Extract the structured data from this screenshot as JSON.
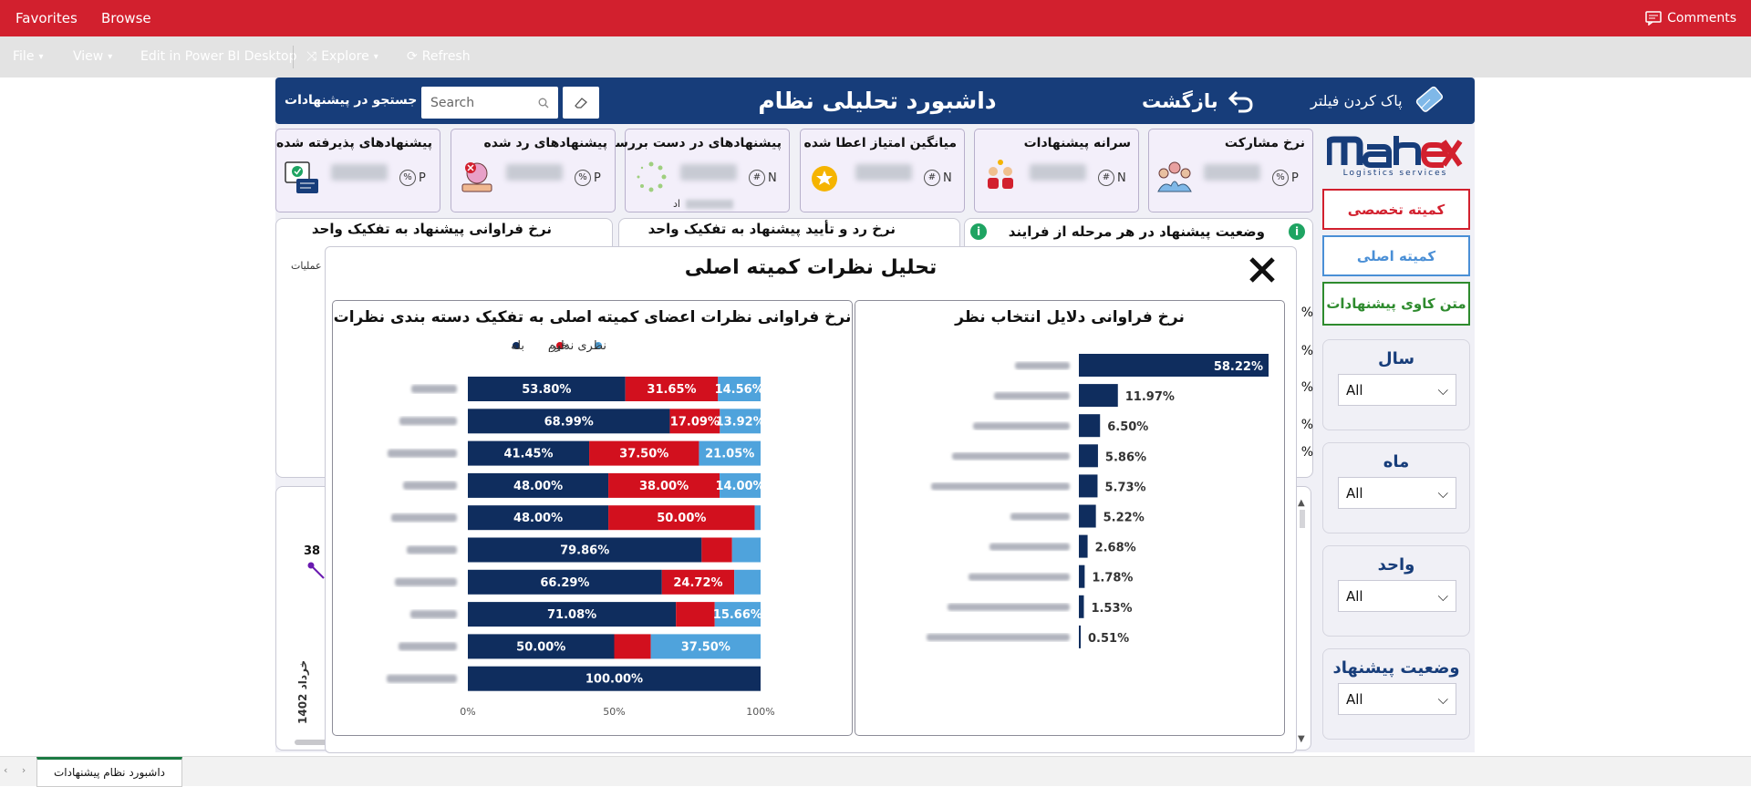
{
  "topbar": {
    "favorites": "Favorites",
    "browse": "Browse",
    "comments": "Comments"
  },
  "cmdbar": {
    "file": "File",
    "view": "View",
    "edit": "Edit in Power BI Desktop",
    "explore": "Explore",
    "refresh": "Refresh"
  },
  "header": {
    "title": "داشبورد تحلیلی نظام پیشنهادات",
    "back": "بازگشت",
    "clear_filter": "پاک کردن فیلتر",
    "search_label": "جستجو در پیشنهادات",
    "search_placeholder": "Search"
  },
  "kpis": [
    {
      "title": "نرخ مشارکت",
      "badge": "P",
      "badge_sym": "%"
    },
    {
      "title": "سرانه پیشنهادات",
      "badge": "N",
      "badge_sym": "#"
    },
    {
      "title": "میانگین امتیاز اعطا شده",
      "badge": "N",
      "badge_sym": "#"
    },
    {
      "title": "پیشنهادهای در دست بررسی",
      "badge": "N",
      "badge_sym": "#",
      "extra": "اد"
    },
    {
      "title": "پیشنهادهای رد شده",
      "badge": "P",
      "badge_sym": "%"
    },
    {
      "title": "پیشنهادهای پذیرفته شده",
      "badge": "P",
      "badge_sym": "%"
    }
  ],
  "logo": {
    "sub": "Logistics services"
  },
  "sidebar": {
    "btn_expert": "کمیته تخصصی",
    "btn_main": "کمیته اصلی",
    "btn_text": "متن کاوی پیشنهادات",
    "colors": {
      "expert": "#d2202e",
      "main": "#4a8fd6",
      "text": "#2e8b2e"
    }
  },
  "slicers": [
    {
      "label": "سال",
      "value": "All"
    },
    {
      "label": "ماه",
      "value": "All"
    },
    {
      "label": "واحد",
      "value": "All"
    },
    {
      "label": "وضعیت پیشنهاد",
      "value": "All"
    }
  ],
  "bg_panels": {
    "p1": "نرخ فراوانی پیشنهاد به تفکیک واحد",
    "p2": "نرخ رد و تأیید پیشنهاد به تفکیک واحد",
    "p3": "وضعیت پیشنهاد در هر مرحله از فرایند",
    "partial_label": "عملیات",
    "line_value": "38",
    "month_label": "خرداد 1402",
    "percent_marks": [
      "%",
      "%",
      "%",
      "%",
      "%"
    ]
  },
  "modal": {
    "title": "تحلیل نظرات کمیته اصلی",
    "close": "✕"
  },
  "chart_data": [
    {
      "type": "bar",
      "title": "نرخ فراوانی دلایل انتخاب نظر",
      "orientation": "horizontal",
      "values": [
        58.22,
        11.97,
        6.5,
        5.86,
        5.73,
        5.22,
        2.68,
        1.78,
        1.53,
        0.51
      ],
      "labels": [
        "58.22%",
        "11.97%",
        "6.50%",
        "5.86%",
        "5.73%",
        "5.22%",
        "2.68%",
        "1.78%",
        "1.53%",
        "0.51%"
      ],
      "xlim": [
        0,
        58.22
      ],
      "color": "#0f2d5e"
    },
    {
      "type": "bar",
      "stacked": "100%",
      "orientation": "horizontal",
      "title": "نرخ فراوانی نظرات اعضای کمیته اصلی به تفکیک دسته بندی نظرات",
      "legend": [
        "بله",
        "خیر",
        "نظری ندارم"
      ],
      "colors": {
        "yes": "#0f2d5e",
        "no": "#d2101e",
        "none": "#4fa3dc"
      },
      "rows": [
        {
          "yes": 53.8,
          "no": 31.65,
          "none": 14.56
        },
        {
          "yes": 68.99,
          "no": 17.09,
          "none": 13.92
        },
        {
          "yes": 41.45,
          "no": 37.5,
          "none": 21.05
        },
        {
          "yes": 48.0,
          "no": 38.0,
          "none": 14.0
        },
        {
          "yes": 48.0,
          "no": 50.0,
          "none": 2.0
        },
        {
          "yes": 79.86,
          "no": 10.4,
          "none": 9.74
        },
        {
          "yes": 66.29,
          "no": 24.72,
          "none": 8.99
        },
        {
          "yes": 71.08,
          "no": 13.26,
          "none": 15.66
        },
        {
          "yes": 50.0,
          "no": 12.5,
          "none": 37.5
        },
        {
          "yes": 100.0,
          "no": 0,
          "none": 0
        }
      ],
      "row_labels": [
        [
          "53.80%",
          "31.65%",
          "14.56%"
        ],
        [
          "68.99%",
          "17.09%",
          "13.92%"
        ],
        [
          "41.45%",
          "37.50%",
          "21.05%"
        ],
        [
          "48.00%",
          "38.00%",
          "14.00%"
        ],
        [
          "48.00%",
          "50.00%",
          ""
        ],
        [
          "79.86%",
          "",
          ""
        ],
        [
          "66.29%",
          "24.72%",
          ""
        ],
        [
          "71.08%",
          "",
          "15.66%"
        ],
        [
          "50.00%",
          "",
          "37.50%"
        ],
        [
          "100.00%",
          "",
          ""
        ]
      ],
      "x_ticks": [
        "0%",
        "50%",
        "100%"
      ],
      "xlim": [
        0,
        100
      ]
    }
  ],
  "footer": {
    "tab": "داشبورد نظام پیشنهادات"
  }
}
